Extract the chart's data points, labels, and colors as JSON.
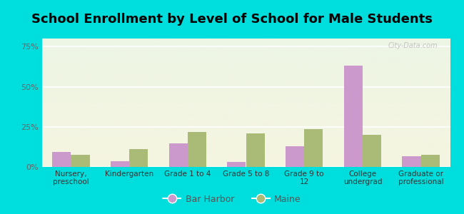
{
  "title": "School Enrollment by Level of School for Male Students",
  "categories": [
    "Nursery,\npreschool",
    "Kindergarten",
    "Grade 1 to 4",
    "Grade 5 to 8",
    "Grade 9 to\n12",
    "College\nundergrad",
    "Graduate or\nprofessional"
  ],
  "bar_harbor": [
    9.5,
    3.5,
    14.5,
    3.0,
    13.0,
    63.0,
    6.5
  ],
  "maine": [
    7.5,
    11.0,
    22.0,
    21.0,
    23.5,
    20.0,
    7.5
  ],
  "bar_harbor_color": "#cc99cc",
  "maine_color": "#aabb77",
  "background_outer": "#00dddd",
  "ylim": [
    0,
    80
  ],
  "yticks": [
    0,
    25,
    50,
    75
  ],
  "ytick_labels": [
    "0%",
    "25%",
    "50%",
    "75%"
  ],
  "title_fontsize": 13,
  "legend_labels": [
    "Bar Harbor",
    "Maine"
  ],
  "watermark": "City-Data.com",
  "grad_top": "#edf5e5",
  "grad_bottom": "#f5f5e0"
}
